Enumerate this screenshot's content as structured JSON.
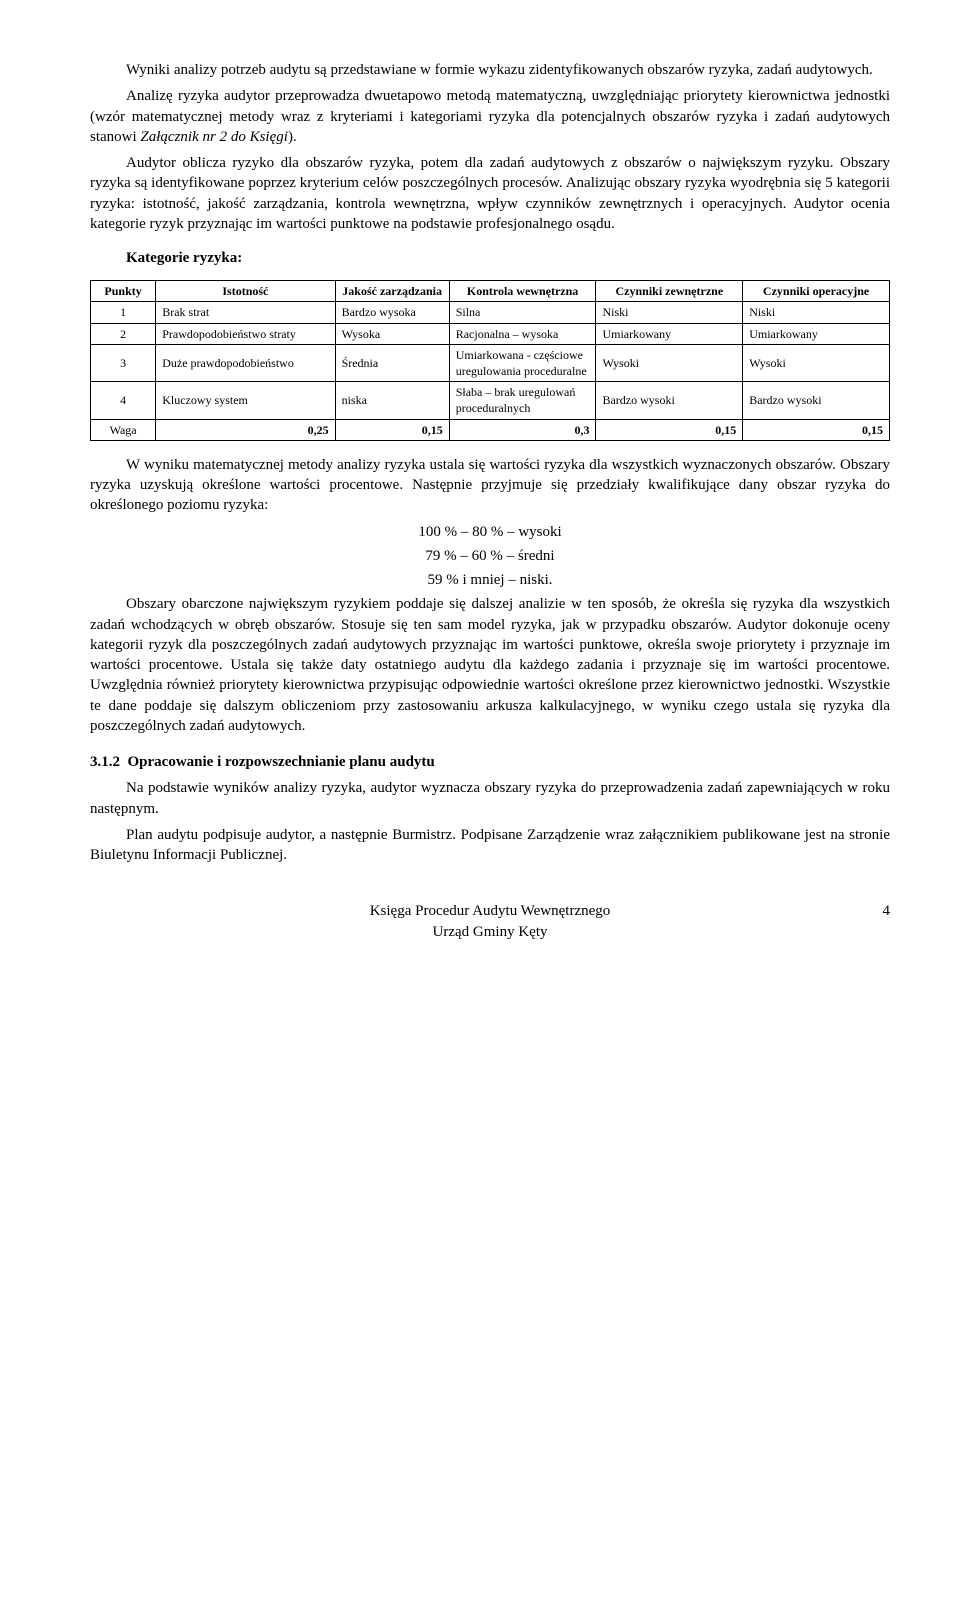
{
  "p1": "Wyniki analizy potrzeb audytu są przedstawiane w formie wykazu zidentyfikowanych obszarów ryzyka, zadań audytowych.",
  "p2_a": "Analizę ryzyka audytor przeprowadza dwuetapowo metodą matematyczną, uwzględniając priorytety kierownictwa jednostki (wzór matematycznej metody wraz z kryteriami i kategoriami ryzyka dla potencjalnych obszarów ryzyka i zadań audytowych stanowi ",
  "p2_it": "Załącznik nr 2 do Księgi",
  "p2_b": ").",
  "p3": "Audytor oblicza ryzyko dla obszarów ryzyka, potem dla zadań audytowych z obszarów o największym ryzyku. Obszary ryzyka są identyfikowane poprzez kryterium celów poszczególnych procesów. Analizując obszary ryzyka wyodrębnia się 5 kategorii ryzyka: istotność, jakość zarządzania, kontrola wewnętrzna, wpływ czynników zewnętrznych i operacyjnych. Audytor ocenia kategorie ryzyk przyznając im wartości punktowe na podstawie profesjonalnego osądu.",
  "kat_title": "Kategorie ryzyka:",
  "table": {
    "headers": [
      "Punkty",
      "Istotność",
      "Jakość zarządzania",
      "Kontrola wewnętrzna",
      "Czynniki zewnętrzne",
      "Czynniki operacyjne"
    ],
    "rows": [
      [
        "1",
        "Brak strat",
        "Bardzo wysoka",
        "Silna",
        "Niski",
        "Niski"
      ],
      [
        "2",
        "Prawdopodobieństwo straty",
        "Wysoka",
        "Racjonalna – wysoka",
        "Umiarkowany",
        "Umiarkowany"
      ],
      [
        "3",
        "Duże prawdopodobieństwo",
        "Średnia",
        "Umiarkowana - częściowe uregulowania proceduralne",
        "Wysoki",
        "Wysoki"
      ],
      [
        "4",
        "Kluczowy system",
        "niska",
        "Słaba – brak uregulowań proceduralnych",
        "Bardzo wysoki",
        "Bardzo wysoki"
      ]
    ],
    "waga_label": "Waga",
    "waga": [
      "0,25",
      "0,15",
      "0,3",
      "0,15",
      "0,15"
    ]
  },
  "p4": "W wyniku matematycznej metody analizy ryzyka ustala się wartości ryzyka dla wszystkich wyznaczonych obszarów. Obszary ryzyka uzyskują określone wartości procentowe. Następnie przyjmuje się przedziały kwalifikujące dany obszar ryzyka do określonego poziomu ryzyka:",
  "lvl1": "100 % – 80 % – wysoki",
  "lvl2": "79 % – 60 % – średni",
  "lvl3": "59 % i mniej – niski.",
  "p5": "Obszary obarczone największym ryzykiem poddaje się dalszej analizie w ten sposób, że określa się ryzyka dla wszystkich zadań wchodzących w obręb obszarów. Stosuje się ten sam model ryzyka, jak w przypadku obszarów. Audytor dokonuje oceny kategorii ryzyk dla poszczególnych zadań audytowych przyznając im wartości punktowe, określa swoje priorytety i przyznaje im wartości procentowe. Ustala się także daty ostatniego audytu dla każdego zadania i przyznaje się im wartości procentowe. Uwzględnia również priorytety kierownictwa przypisując odpowiednie wartości określone przez kierownictwo jednostki. Wszystkie te dane poddaje się dalszym obliczeniom przy zastosowaniu arkusza kalkulacyjnego, w wyniku czego ustala się ryzyka dla poszczególnych zadań audytowych.",
  "sec_num": "3.1.2",
  "sec_title": "Opracowanie i rozpowszechnianie planu audytu",
  "p6": "Na podstawie wyników analizy ryzyka, audytor wyznacza obszary ryzyka do przeprowadzenia zadań zapewniających w roku następnym.",
  "p7": "Plan audytu podpisuje audytor, a następnie Burmistrz. Podpisane Zarządzenie wraz załącznikiem publikowane jest na stronie Biuletynu Informacji Publicznej.",
  "footer1": "Księga Procedur Audytu Wewnętrznego",
  "footer2": "Urząd Gminy Kęty",
  "page": "4"
}
